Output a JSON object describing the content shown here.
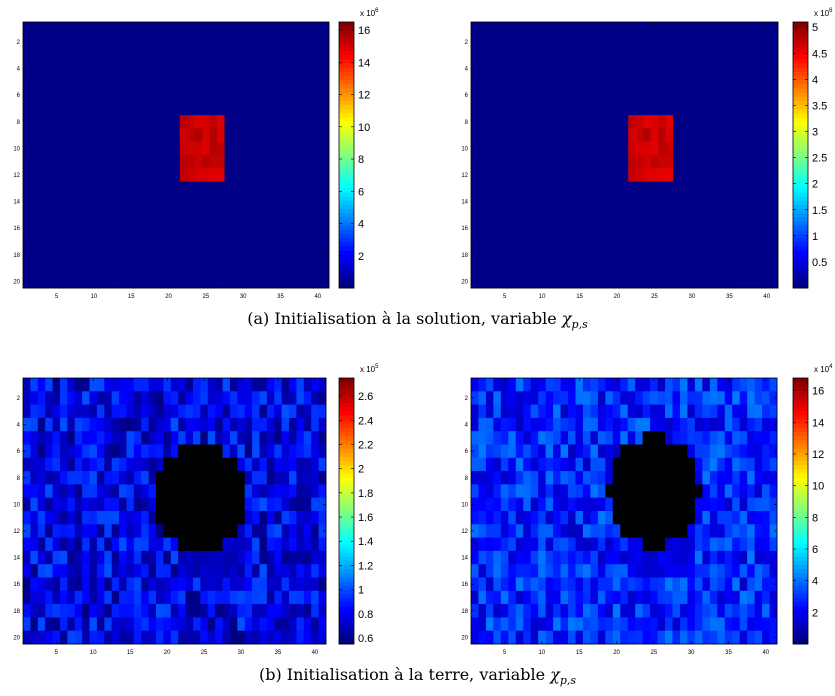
{
  "panels": [
    {
      "id": "a-left",
      "rows": 20,
      "cols": 41,
      "xticks": [
        5,
        10,
        15,
        20,
        25,
        30,
        35,
        40
      ],
      "yticks": [
        2,
        4,
        6,
        8,
        10,
        12,
        14,
        16,
        18,
        20
      ],
      "mode": "block",
      "vmin": 0,
      "vmax": 16.5,
      "background": 0.1,
      "block": {
        "rows": [
          8,
          12
        ],
        "cols": [
          22,
          27
        ],
        "level": 15.8,
        "jitter": 0.9
      },
      "cb_ticks": [
        "2",
        "4",
        "6",
        "8",
        "10",
        "12",
        "14",
        "16"
      ],
      "cb_tick_values": [
        2,
        4,
        6,
        8,
        10,
        12,
        14,
        16
      ],
      "cb_exp_base": "x 10",
      "cb_exp_power": "6"
    },
    {
      "id": "a-right",
      "rows": 20,
      "cols": 41,
      "xticks": [
        5,
        10,
        15,
        20,
        25,
        30,
        35,
        40
      ],
      "yticks": [
        2,
        4,
        6,
        8,
        10,
        12,
        14,
        16,
        18,
        20
      ],
      "mode": "block",
      "vmin": 0,
      "vmax": 5.1,
      "background": 0.03,
      "block": {
        "rows": [
          8,
          12
        ],
        "cols": [
          22,
          27
        ],
        "level": 4.85,
        "jitter": 0.28
      },
      "cb_ticks": [
        "0.5",
        "1",
        "1.5",
        "2",
        "2.5",
        "3",
        "3.5",
        "4",
        "4.5",
        "5"
      ],
      "cb_tick_values": [
        0.5,
        1,
        1.5,
        2,
        2.5,
        3,
        3.5,
        4,
        4.5,
        5
      ],
      "cb_exp_base": "x 10",
      "cb_exp_power": "6"
    },
    {
      "id": "b-left",
      "rows": 20,
      "cols": 41,
      "xticks": [
        5,
        10,
        15,
        20,
        25,
        30,
        35,
        40
      ],
      "yticks": [
        2,
        4,
        6,
        8,
        10,
        12,
        14,
        16,
        18,
        20
      ],
      "mode": "noise",
      "vmin": 0.55,
      "vmax": 2.75,
      "noise": {
        "base": 0.78,
        "amp": 0.22,
        "seed": 7,
        "hot": {
          "rows": [
            8,
            11
          ],
          "cols": [
            21,
            28
          ],
          "peak": 2.7,
          "halo": 1.3
        },
        "cold": {
          "rows": [
            12,
            15
          ],
          "cols": [
            22,
            30
          ],
          "level": 0.62
        }
      },
      "cb_ticks": [
        "0.6",
        "0.8",
        "1",
        "1.2",
        "1.4",
        "1.6",
        "1.8",
        "2",
        "2.2",
        "2.4",
        "2.6"
      ],
      "cb_tick_values": [
        0.6,
        0.8,
        1,
        1.2,
        1.4,
        1.6,
        1.8,
        2,
        2.2,
        2.4,
        2.6
      ],
      "cb_exp_base": "x 10",
      "cb_exp_power": "5"
    },
    {
      "id": "b-right",
      "rows": 20,
      "cols": 41,
      "xticks": [
        5,
        10,
        15,
        20,
        25,
        30,
        35,
        40
      ],
      "yticks": [
        2,
        4,
        6,
        8,
        10,
        12,
        14,
        16,
        18,
        20
      ],
      "mode": "noise",
      "vmin": 0,
      "vmax": 16.8,
      "noise": {
        "base": 2.6,
        "amp": 1.5,
        "seed": 13,
        "hot": {
          "rows": [
            8,
            10
          ],
          "cols": [
            23,
            27
          ],
          "peak": 16.5,
          "halo": 7
        },
        "cold": {
          "rows": [
            12,
            15
          ],
          "cols": [
            22,
            30
          ],
          "level": 1.2
        }
      },
      "cb_ticks": [
        "2",
        "4",
        "6",
        "8",
        "10",
        "12",
        "14",
        "16"
      ],
      "cb_tick_values": [
        2,
        4,
        6,
        8,
        10,
        12,
        14,
        16
      ],
      "cb_exp_base": "x 10",
      "cb_exp_power": "4"
    }
  ],
  "captions": {
    "a": {
      "prefix": "(a) Initialisation à la solution, variable ",
      "symbol": "χ",
      "sub": "p,s"
    },
    "b": {
      "prefix": "(b) Initialisation à la terre, variable ",
      "symbol": "χ",
      "sub": "p,s"
    }
  },
  "chart_data": [
    {
      "type": "heatmap",
      "title": "",
      "xlabel": "",
      "ylabel": "",
      "x_range": [
        1,
        41
      ],
      "y_range": [
        1,
        20
      ],
      "colorbar_range": [
        0,
        16.5
      ],
      "colorbar_scale": "x 10^6",
      "description_values": {
        "background": 0,
        "anomaly_rows": [
          8,
          12
        ],
        "anomaly_cols": [
          22,
          27
        ],
        "anomaly_value": 16
      }
    },
    {
      "type": "heatmap",
      "title": "",
      "xlabel": "",
      "ylabel": "",
      "x_range": [
        1,
        41
      ],
      "y_range": [
        1,
        20
      ],
      "colorbar_range": [
        0,
        5.1
      ],
      "colorbar_scale": "x 10^6",
      "description_values": {
        "background": 0,
        "anomaly_rows": [
          8,
          12
        ],
        "anomaly_cols": [
          22,
          27
        ],
        "anomaly_value": 5
      }
    },
    {
      "type": "heatmap",
      "title": "",
      "xlabel": "",
      "ylabel": "",
      "x_range": [
        1,
        41
      ],
      "y_range": [
        1,
        20
      ],
      "colorbar_range": [
        0.55,
        2.75
      ],
      "colorbar_scale": "x 10^5",
      "description_values": {
        "background": 0.8,
        "anomaly_rows": [
          8,
          11
        ],
        "anomaly_cols": [
          21,
          28
        ],
        "anomaly_value": 2.7
      }
    },
    {
      "type": "heatmap",
      "title": "",
      "xlabel": "",
      "ylabel": "",
      "x_range": [
        1,
        41
      ],
      "y_range": [
        1,
        20
      ],
      "colorbar_range": [
        0,
        16.8
      ],
      "colorbar_scale": "x 10^4",
      "description_values": {
        "background": 2.5,
        "anomaly_rows": [
          8,
          10
        ],
        "anomaly_cols": [
          23,
          27
        ],
        "anomaly_value": 16.5
      }
    }
  ]
}
